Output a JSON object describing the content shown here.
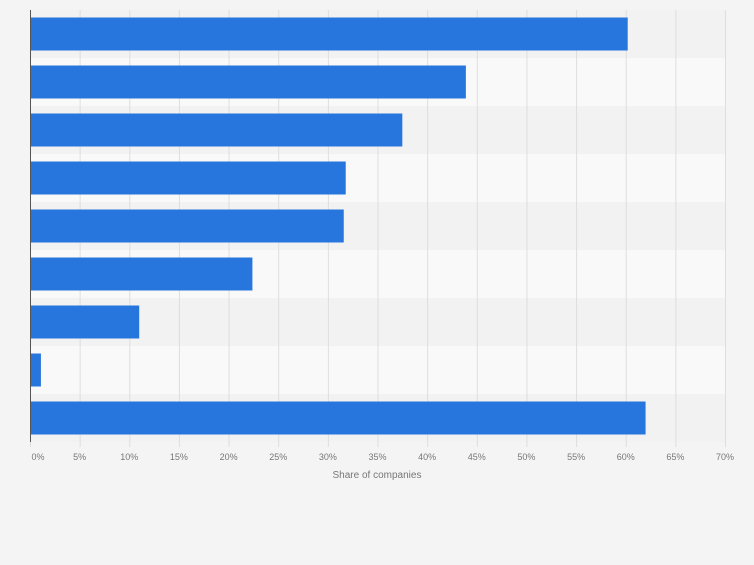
{
  "chart_data": {
    "type": "bar",
    "orientation": "horizontal",
    "title": "",
    "xlabel": "Share of companies",
    "ylabel": "",
    "categories": [
      "",
      "",
      "",
      "",
      "",
      "",
      "",
      "",
      ""
    ],
    "values": [
      60.2,
      43.9,
      37.5,
      31.8,
      31.6,
      22.4,
      11.0,
      1.1,
      62.0
    ],
    "xlim": [
      0,
      70
    ],
    "x_ticks": [
      0,
      5,
      10,
      15,
      20,
      25,
      30,
      35,
      40,
      45,
      50,
      55,
      60,
      65,
      70
    ],
    "x_tick_labels": [
      "0%",
      "5%",
      "10%",
      "15%",
      "20%",
      "25%",
      "30%",
      "35%",
      "40%",
      "45%",
      "50%",
      "55%",
      "60%",
      "65%",
      "70%"
    ],
    "grid": true,
    "legend": "none",
    "bar_color": "#2776dd",
    "band_colors": [
      "#f2f2f2",
      "#f9f9f9"
    ],
    "background_color": "#f4f4f4",
    "grid_color": "#dedede",
    "axis_color": "#555555",
    "label_color": "#777777"
  }
}
